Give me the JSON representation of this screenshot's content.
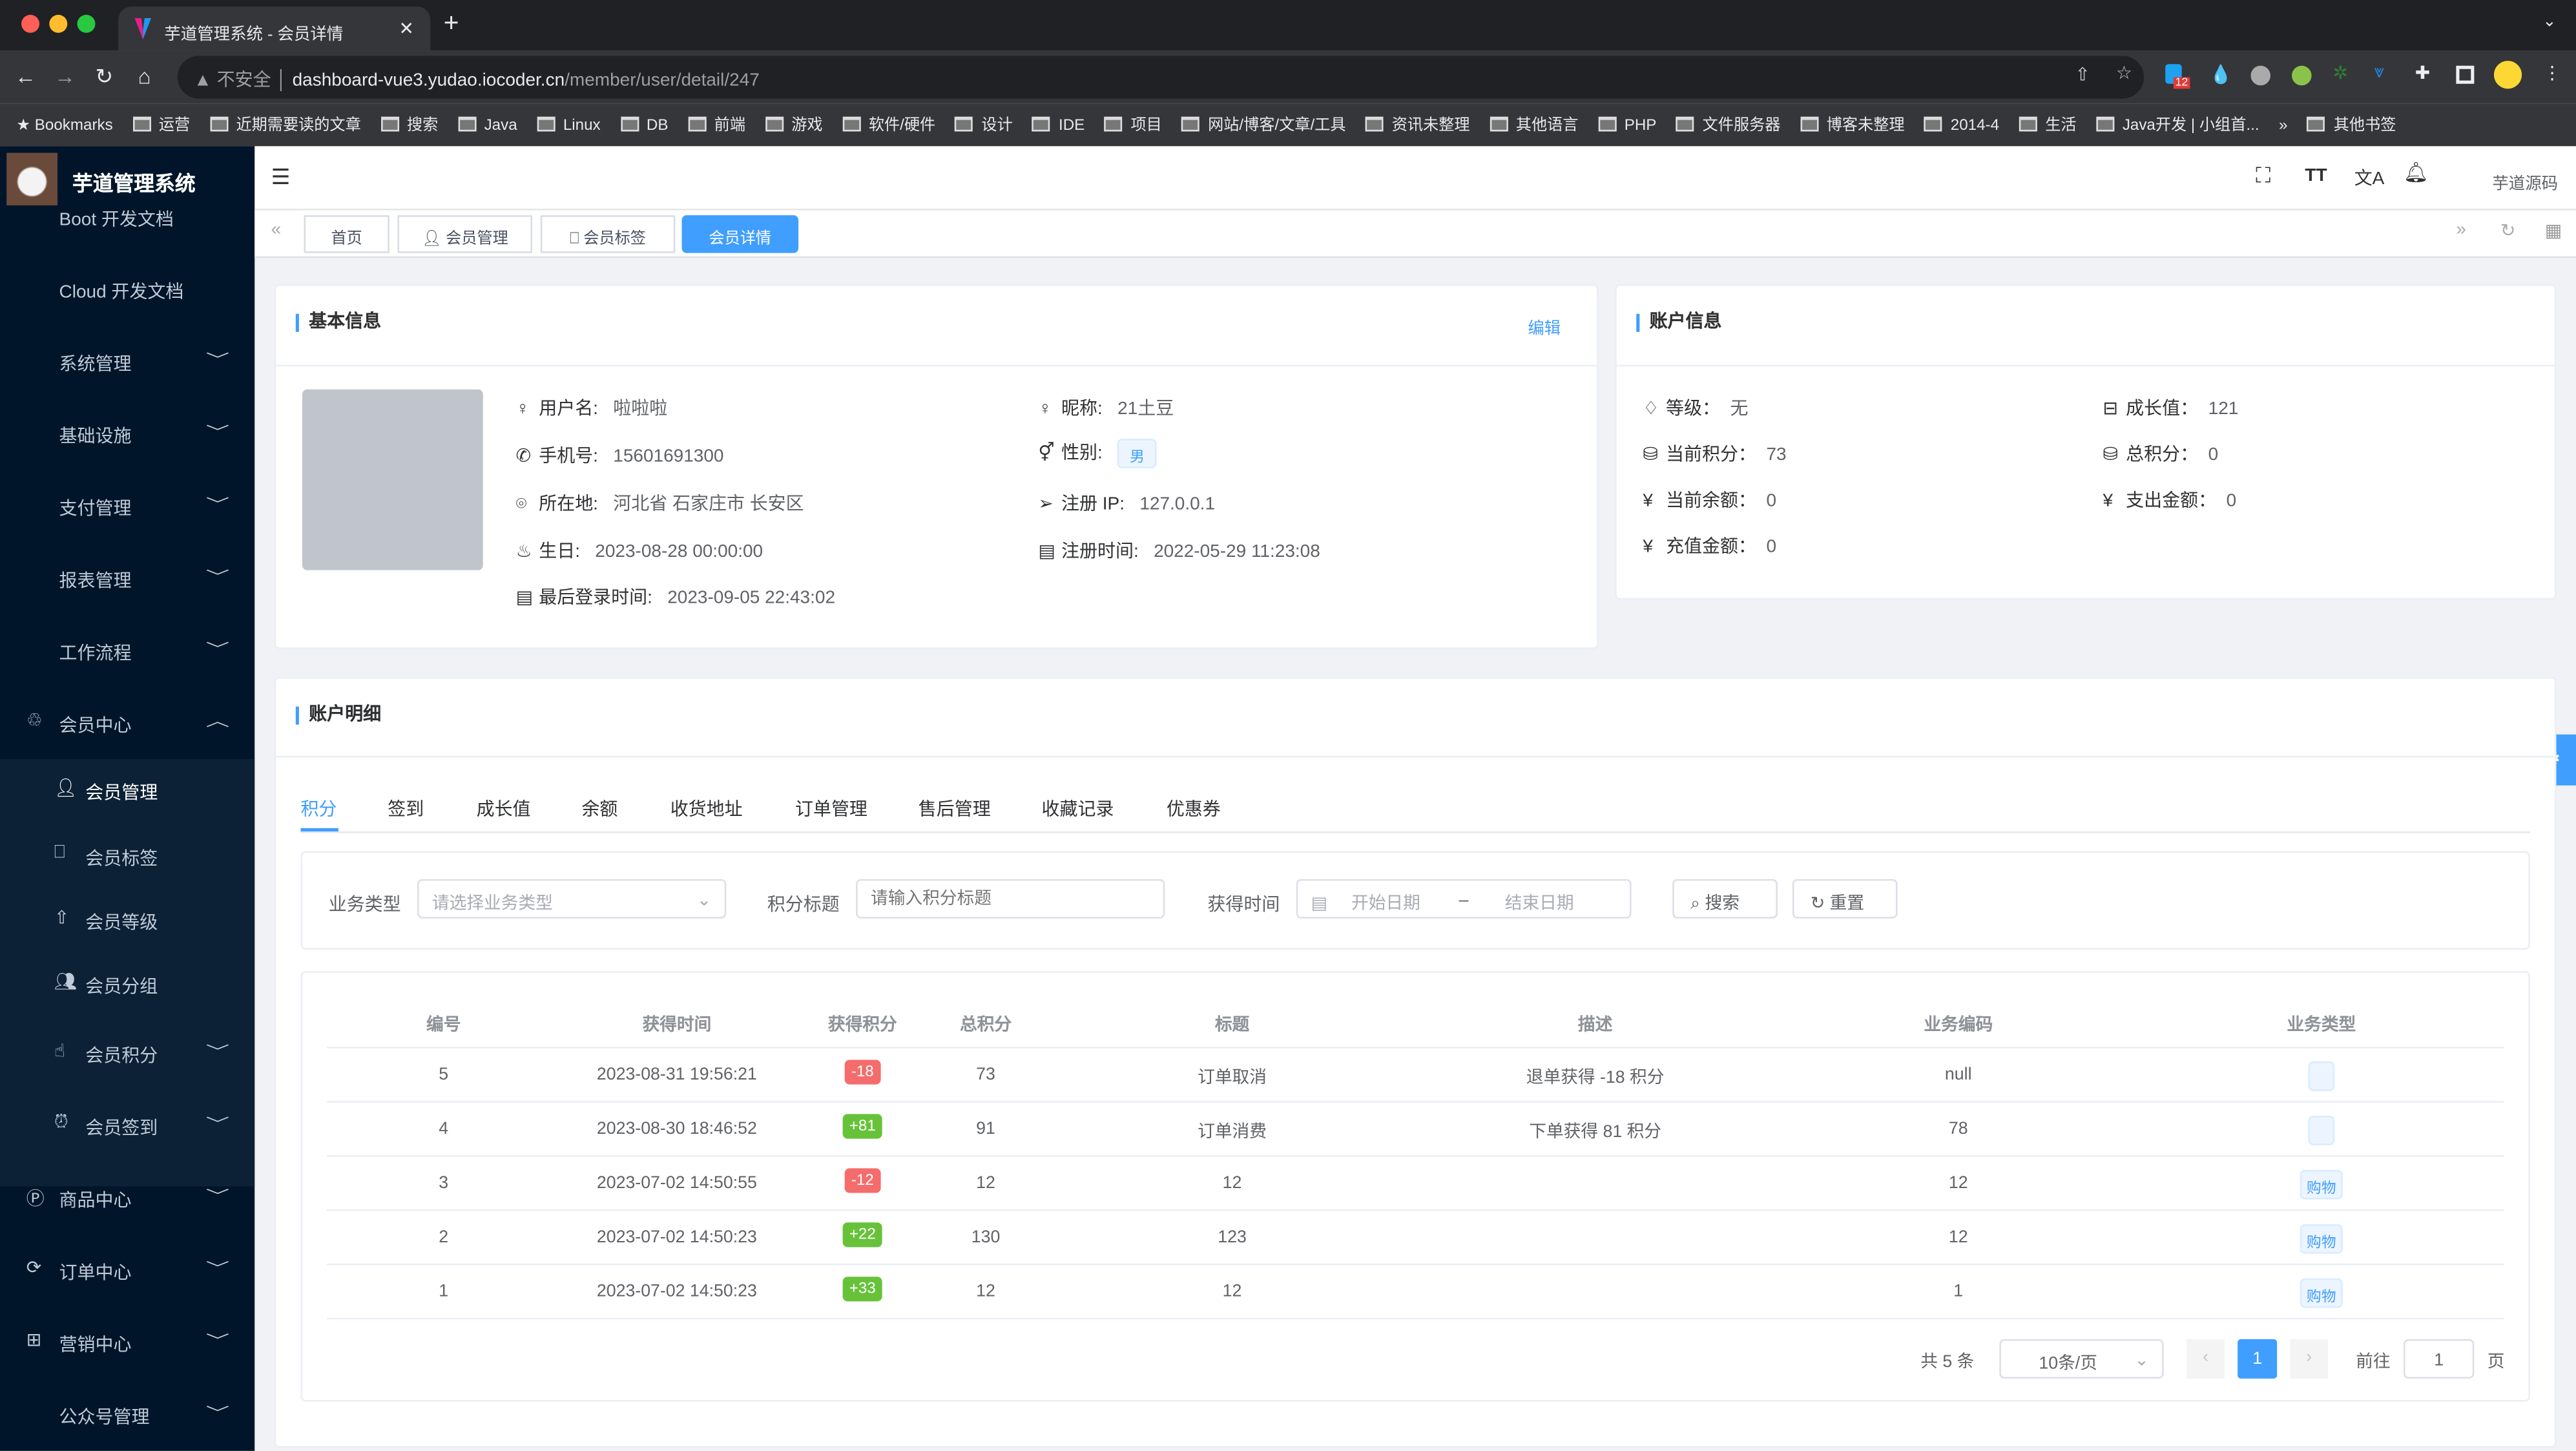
{
  "browser": {
    "tab_title": "芋道管理系统 - 会员详情",
    "security": "不安全",
    "url_host": "dashboard-vue3.yudao.iocoder.cn",
    "url_path": "/member/user/detail/247",
    "extension_badge": "12",
    "bookmarks": [
      "Bookmarks",
      "运营",
      "近期需要读的文章",
      "搜索",
      "Java",
      "Linux",
      "DB",
      "前端",
      "游戏",
      "软件/硬件",
      "设计",
      "IDE",
      "项目",
      "网站/博客/文章/工具",
      "资讯未整理",
      "其他语言",
      "PHP",
      "文件服务器",
      "博客未整理",
      "2014-4",
      "生活",
      "Java开发 | 小组首...",
      "»",
      "其他书签"
    ]
  },
  "sidebar": {
    "title": "芋道管理系统",
    "items": [
      {
        "label": "Boot 开发文档",
        "icon": "",
        "chev": ""
      },
      {
        "label": "Cloud 开发文档",
        "icon": "",
        "chev": ""
      },
      {
        "label": "系统管理",
        "icon": "",
        "chev": "﹀"
      },
      {
        "label": "基础设施",
        "icon": "",
        "chev": "﹀"
      },
      {
        "label": "支付管理",
        "icon": "",
        "chev": "﹀"
      },
      {
        "label": "报表管理",
        "icon": "",
        "chev": "﹀"
      },
      {
        "label": "工作流程",
        "icon": "",
        "chev": "﹀"
      },
      {
        "label": "会员中心",
        "icon": "bicycle-icon",
        "chev": "︿"
      },
      {
        "label": "会员管理",
        "icon": "user-icon",
        "chev": "",
        "sub": true,
        "active": true
      },
      {
        "label": "会员标签",
        "icon": "bookmark-icon",
        "chev": "",
        "sub": true
      },
      {
        "label": "会员等级",
        "icon": "level-up-icon",
        "chev": "",
        "sub": true
      },
      {
        "label": "会员分组",
        "icon": "group-icon",
        "chev": "",
        "sub": true
      },
      {
        "label": "会员积分",
        "icon": "points-icon",
        "chev": "﹀",
        "sub": true
      },
      {
        "label": "会员签到",
        "icon": "alarm-icon",
        "chev": "﹀",
        "sub": true
      },
      {
        "label": "商品中心",
        "icon": "product-icon",
        "chev": "﹀"
      },
      {
        "label": "订单中心",
        "icon": "order-icon",
        "chev": "﹀"
      },
      {
        "label": "营销中心",
        "icon": "gift-icon",
        "chev": "﹀"
      },
      {
        "label": "公众号管理",
        "icon": "",
        "chev": "﹀"
      }
    ]
  },
  "header": {
    "source_link": "芋道源码",
    "tags": [
      "首页",
      "会员管理",
      "会员标签",
      "会员详情"
    ],
    "active_tag": "会员详情"
  },
  "basic": {
    "title": "基本信息",
    "edit": "编辑",
    "username_label": "用户名:",
    "username": "啦啦啦",
    "nickname_label": "昵称:",
    "nickname": "21土豆",
    "mobile_label": "手机号:",
    "mobile": "15601691300",
    "gender_label": "性别:",
    "gender": "男",
    "area_label": "所在地:",
    "area": "河北省 石家庄市 长安区",
    "ip_label": "注册 IP:",
    "ip": "127.0.0.1",
    "birthday_label": "生日:",
    "birthday": "2023-08-28 00:00:00",
    "reg_label": "注册时间:",
    "reg_time": "2022-05-29 11:23:08",
    "login_label": "最后登录时间:",
    "login_time": "2023-09-05 22:43:02"
  },
  "account": {
    "title": "账户信息",
    "level_label": "等级：",
    "level": "无",
    "growth_label": "成长值：",
    "growth": "121",
    "point_label": "当前积分：",
    "point": "73",
    "total_point_label": "总积分：",
    "total_point": "0",
    "balance_label": "当前余额：",
    "balance": "0",
    "spend_label": "支出金额：",
    "spend": "0",
    "recharge_label": "充值金额：",
    "recharge": "0"
  },
  "detail": {
    "title": "账户明细",
    "tabs": [
      "积分",
      "签到",
      "成长值",
      "余额",
      "收货地址",
      "订单管理",
      "售后管理",
      "收藏记录",
      "优惠券"
    ],
    "active_tab": "积分",
    "filter": {
      "biz_type_label": "业务类型",
      "biz_type_placeholder": "请选择业务类型",
      "title_label": "积分标题",
      "title_placeholder": "请输入积分标题",
      "time_label": "获得时间",
      "start_placeholder": "开始日期",
      "sep": "–",
      "end_placeholder": "结束日期",
      "search": "搜索",
      "reset": "重置"
    },
    "columns": [
      "编号",
      "获得时间",
      "获得积分",
      "总积分",
      "标题",
      "描述",
      "业务编码",
      "业务类型"
    ],
    "rows": [
      {
        "id": "5",
        "time": "2023-08-31 19:56:21",
        "point": "-18",
        "total": "73",
        "title": "订单取消",
        "desc": "退单获得 -18 积分",
        "biz": "null",
        "type": ""
      },
      {
        "id": "4",
        "time": "2023-08-30 18:46:52",
        "point": "+81",
        "total": "91",
        "title": "订单消费",
        "desc": "下单获得 81 积分",
        "biz": "78",
        "type": ""
      },
      {
        "id": "3",
        "time": "2023-07-02 14:50:55",
        "point": "-12",
        "total": "12",
        "title": "12",
        "desc": "",
        "biz": "12",
        "type": "购物"
      },
      {
        "id": "2",
        "time": "2023-07-02 14:50:23",
        "point": "+22",
        "total": "130",
        "title": "123",
        "desc": "",
        "biz": "12",
        "type": "购物"
      },
      {
        "id": "1",
        "time": "2023-07-02 14:50:23",
        "point": "+33",
        "total": "12",
        "title": "12",
        "desc": "",
        "biz": "1",
        "type": "购物"
      }
    ],
    "pagination": {
      "total": "共 5 条",
      "page_size": "10条/页",
      "current": "1",
      "goto_label": "前往",
      "goto_value": "1",
      "page_unit": "页"
    }
  },
  "colors": {
    "accent": "#409eff",
    "sidebar": "#001529",
    "negative": "#f56c6c",
    "positive": "#67c23a"
  }
}
